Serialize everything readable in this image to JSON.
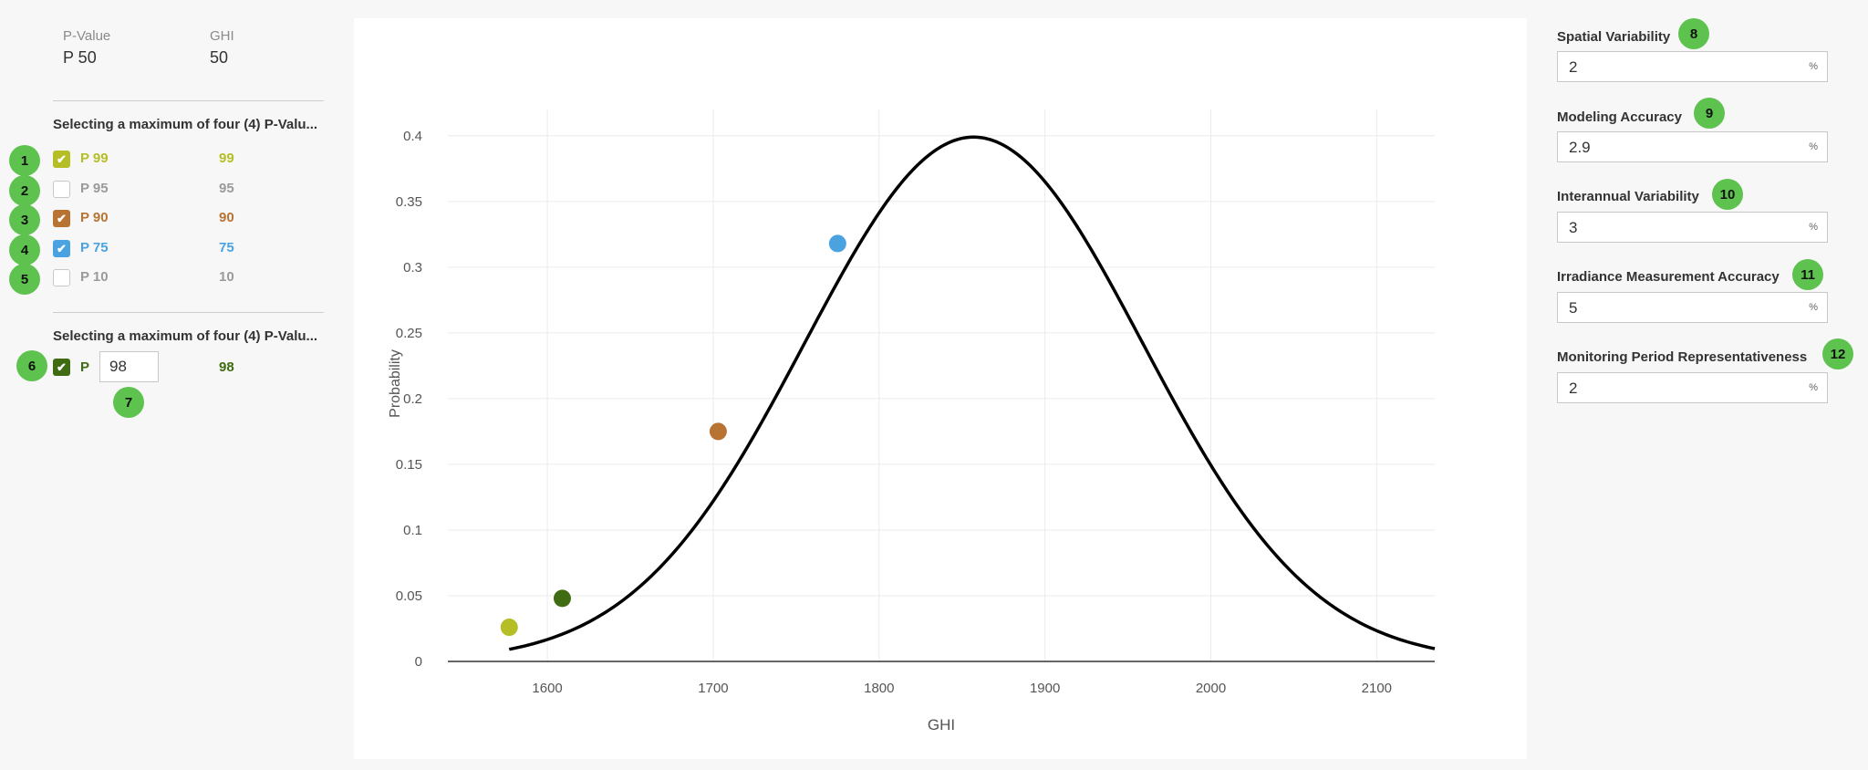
{
  "header": {
    "pvalue_label": "P-Value",
    "pvalue_value": "P 50",
    "ghi_label": "GHI",
    "ghi_value": "50"
  },
  "section1": {
    "title": "Selecting a maximum of four (4) P-Valu...",
    "items": [
      {
        "badge": "1",
        "name": "P 99",
        "value": "99",
        "checked": true,
        "color": "#b5be25"
      },
      {
        "badge": "2",
        "name": "P 95",
        "value": "95",
        "checked": false,
        "color": "#9a9a9a"
      },
      {
        "badge": "3",
        "name": "P 90",
        "value": "90",
        "checked": true,
        "color": "#b87333"
      },
      {
        "badge": "4",
        "name": "P 75",
        "value": "75",
        "checked": true,
        "color": "#4aa3e0"
      },
      {
        "badge": "5",
        "name": "P 10",
        "value": "10",
        "checked": false,
        "color": "#9a9a9a"
      }
    ]
  },
  "section2": {
    "title": "Selecting a maximum of four (4) P-Valu...",
    "badge": "6",
    "prefix": "P",
    "input_value": "98",
    "input_badge": "7",
    "value": "98",
    "checked": true,
    "color": "#3f6b12"
  },
  "fields": [
    {
      "badge": "8",
      "label": "Spatial Variability",
      "value": "2",
      "unit": "%"
    },
    {
      "badge": "9",
      "label": "Modeling Accuracy",
      "value": "2.9",
      "unit": "%"
    },
    {
      "badge": "10",
      "label": "Interannual Variability",
      "value": "3",
      "unit": "%"
    },
    {
      "badge": "11",
      "label": "Irradiance Measurement Accuracy",
      "value": "5",
      "unit": "%"
    },
    {
      "badge": "12",
      "label": "Monitoring Period Representativeness",
      "value": "2",
      "unit": "%"
    }
  ],
  "chart_data": {
    "type": "line",
    "xlabel": "GHI",
    "ylabel": "Probability",
    "xlim": [
      1540,
      2135
    ],
    "ylim": [
      0,
      0.42
    ],
    "x_ticks": [
      1600,
      1700,
      1800,
      1900,
      2000,
      2100
    ],
    "y_ticks": [
      0,
      0.05,
      0.1,
      0.15,
      0.2,
      0.25,
      0.3,
      0.35,
      0.4
    ],
    "y_tick_labels": [
      "0",
      "0.05",
      "0.1",
      "0.15",
      "0.2",
      "0.25",
      "0.3",
      "0.35",
      "0.4"
    ],
    "grid": true,
    "curve": {
      "distribution": "normal",
      "mean": 1857,
      "std": 102,
      "peak": 0.399,
      "x_range": [
        1577,
        2135
      ]
    },
    "points": [
      {
        "label": "P 99",
        "x": 1577,
        "y": 0.026,
        "color": "#b5be25"
      },
      {
        "label": "P 98",
        "x": 1609,
        "y": 0.048,
        "color": "#3f6b12"
      },
      {
        "label": "P 90",
        "x": 1703,
        "y": 0.175,
        "color": "#b87333"
      },
      {
        "label": "P 75",
        "x": 1775,
        "y": 0.318,
        "color": "#4aa3e0"
      }
    ]
  }
}
